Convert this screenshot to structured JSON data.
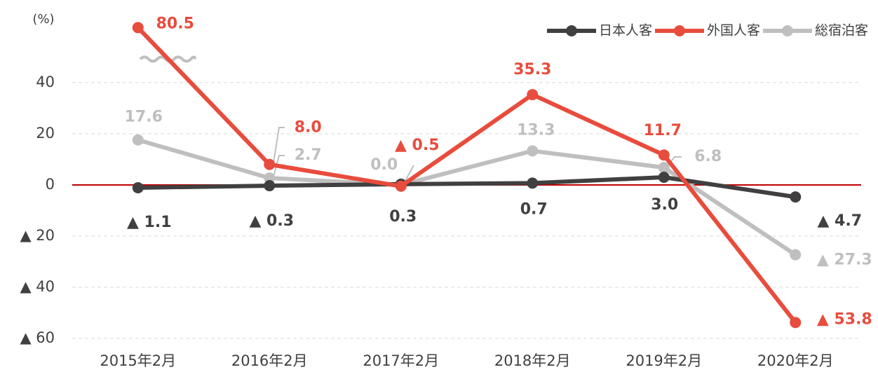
{
  "chart_data": {
    "type": "line",
    "y_unit": "(%)",
    "categories": [
      "2015年2月",
      "2016年2月",
      "2017年2月",
      "2018年2月",
      "2019年2月",
      "2020年2月"
    ],
    "series": [
      {
        "name": "日本人客",
        "color": "#404040",
        "values": [
          -1.1,
          -0.3,
          0.3,
          0.7,
          3.0,
          -4.7
        ],
        "value_labels": [
          "▲ 1.1",
          "▲ 0.3",
          "0.3",
          "0.7",
          "3.0",
          "▲ 4.7"
        ]
      },
      {
        "name": "外国人客",
        "color": "#e84c3d",
        "values": [
          80.5,
          8.0,
          -0.5,
          35.3,
          11.7,
          -53.8
        ],
        "value_labels": [
          "80.5",
          "8.0",
          "▲ 0.5",
          "35.3",
          "11.7",
          "▲ 53.8"
        ]
      },
      {
        "name": "総宿泊客",
        "color": "#bfbfbf",
        "values": [
          17.6,
          2.7,
          0.0,
          13.3,
          6.8,
          -27.3
        ],
        "value_labels": [
          "17.6",
          "2.7",
          "0.0",
          "13.3",
          "6.8",
          "▲ 27.3"
        ]
      }
    ],
    "ylim": [
      -60,
      85
    ],
    "y_axis_break": [
      50,
      69
    ],
    "yticks": [
      {
        "value": -60,
        "label": "▲ 60"
      },
      {
        "value": -40,
        "label": "▲ 40"
      },
      {
        "value": -20,
        "label": "▲ 20"
      },
      0,
      20,
      40
    ],
    "grid": true,
    "zero_line_color": "#c00000",
    "legend": "top-right"
  }
}
